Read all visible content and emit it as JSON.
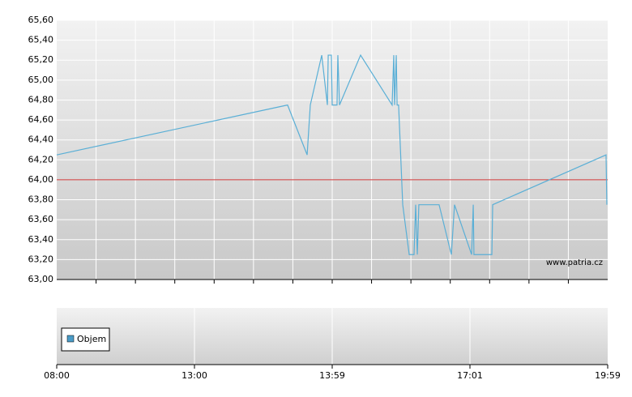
{
  "chart_data": {
    "type": "line",
    "watermark": "www.patria.cz",
    "legend": {
      "labels": [
        "Objem"
      ],
      "color": "#4a9cc8"
    },
    "reference_line": {
      "value": 64.0,
      "color": "#cc3333"
    },
    "xlim": [
      0,
      4
    ],
    "xticks": [
      {
        "value": 0,
        "label": "08:00"
      },
      {
        "value": 1,
        "label": "13:00"
      },
      {
        "value": 2,
        "label": "13:59"
      },
      {
        "value": 3,
        "label": "17:01"
      },
      {
        "value": 4,
        "label": "19:59"
      }
    ],
    "ylim": [
      63.0,
      65.6
    ],
    "yticks": [
      {
        "value": 63.0,
        "label": "63,00"
      },
      {
        "value": 63.2,
        "label": "63,20"
      },
      {
        "value": 63.4,
        "label": "63,40"
      },
      {
        "value": 63.6,
        "label": "63,60"
      },
      {
        "value": 63.8,
        "label": "63,80"
      },
      {
        "value": 64.0,
        "label": "64,00"
      },
      {
        "value": 64.2,
        "label": "64,20"
      },
      {
        "value": 64.4,
        "label": "64,40"
      },
      {
        "value": 64.6,
        "label": "64,60"
      },
      {
        "value": 64.8,
        "label": "64,80"
      },
      {
        "value": 65.0,
        "label": "65,00"
      },
      {
        "value": 65.2,
        "label": "65,20"
      },
      {
        "value": 65.4,
        "label": "65,40"
      },
      {
        "value": 65.6,
        "label": "65,60"
      }
    ],
    "grid": true,
    "series": [
      {
        "color": "#5aafd6",
        "x": [
          0,
          1.676,
          1.818,
          1.841,
          1.924,
          1.965,
          1.971,
          1.994,
          2.0,
          2.035,
          2.041,
          2.053,
          2.206,
          2.435,
          2.447,
          2.453,
          2.465,
          2.471,
          2.482,
          2.512,
          2.559,
          2.594,
          2.606,
          2.618,
          2.629,
          2.776,
          2.865,
          2.888,
          3.012,
          3.024,
          3.029,
          3.159,
          3.165,
          3.988,
          3.994
        ],
        "values": [
          64.25,
          64.75,
          64.25,
          64.75,
          65.25,
          64.75,
          65.25,
          65.25,
          64.75,
          64.75,
          65.25,
          64.75,
          65.25,
          64.75,
          65.25,
          64.75,
          65.25,
          64.75,
          64.75,
          63.75,
          63.25,
          63.25,
          63.75,
          63.25,
          63.75,
          63.75,
          63.25,
          63.75,
          63.25,
          63.75,
          63.25,
          63.25,
          63.75,
          64.25,
          63.75
        ]
      }
    ]
  }
}
